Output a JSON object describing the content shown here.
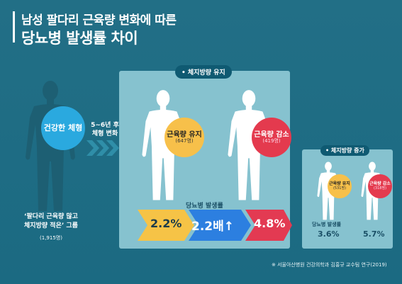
{
  "title": {
    "line1": "남성 팔다리 근육량 변화에 따른",
    "line2": "당뇨병 발생률 차이"
  },
  "left_group": {
    "circle_label": "건강한 체형",
    "group_label_line1": "‘팔다리 근육량 많고",
    "group_label_line2": "체지방량 적은’ 그룹",
    "count": "(1,915명)"
  },
  "change": {
    "line1": "5~6년 후",
    "line2": "체형 변화"
  },
  "main_panel": {
    "tag": "• 체지방량 유지",
    "maintain": {
      "label": "근육량 유지",
      "count": "(647명)"
    },
    "decrease": {
      "label": "근육량 감소",
      "count": "(419명)"
    },
    "rate_label": "당뇨병 발생률",
    "rates": {
      "maintain": "2.2%",
      "ratio": "2.2배↑",
      "decrease": "4.8%"
    }
  },
  "side_panel": {
    "tag": "• 체지방량 증가",
    "maintain": {
      "label": "근육량 유지",
      "count": "(531명)"
    },
    "decrease": {
      "label": "근육량 감소",
      "count": "(318명)"
    },
    "rate_label": "당뇨병 발생률",
    "rates": {
      "maintain": "3.6%",
      "decrease": "5.7%"
    }
  },
  "footnote": "※ 서울아산병원 건강의학과 김홍규 교수팀 연구(2019)",
  "colors": {
    "background": "#1f6f85",
    "panel": "#86c2cf",
    "tag_pill": "#0f5a72",
    "figure_light": "#ffffff",
    "figure_dark": "#1d5f73",
    "circle_blue": "#2aa9df",
    "circle_yellow": "#f7c04a",
    "circle_red": "#e43a4e",
    "arrow_yellow": "#f6c346",
    "arrow_blue": "#2c7fe0",
    "arrow_red": "#e33a52"
  }
}
